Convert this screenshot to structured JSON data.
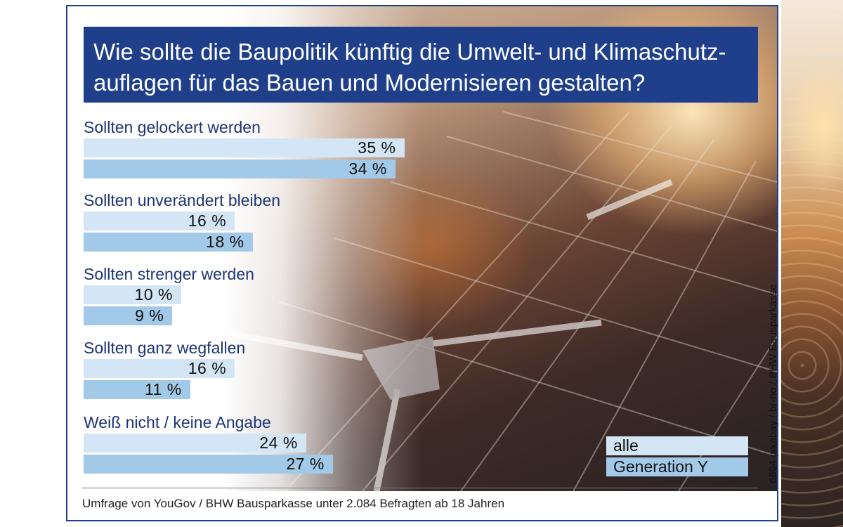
{
  "title_lines": [
    "Wie sollte die Baupolitik künftig die Umwelt- und Klimaschutz-",
    "auflagen für das Bauen und Modernisieren gestalten?"
  ],
  "chart_data": {
    "type": "bar",
    "orientation": "horizontal",
    "title": "Wie sollte die Baupolitik künftig die Umwelt- und Klimaschutzauflagen für das Bauen und Modernisieren gestalten?",
    "categories": [
      "Sollten gelockert werden",
      "Sollten unverändert bleiben",
      "Sollten strenger werden",
      "Sollten ganz wegfallen",
      "Weiß nicht / keine Angabe"
    ],
    "series": [
      {
        "name": "alle",
        "values": [
          35,
          16,
          10,
          16,
          24
        ],
        "labels": [
          "35 %",
          "16 %",
          "10 %",
          "16 %",
          "24 %"
        ],
        "color": "#d4e6f5"
      },
      {
        "name": "Generation Y",
        "values": [
          34,
          18,
          9,
          11,
          27
        ],
        "labels": [
          "34 %",
          "18 %",
          "9 %",
          "11 %",
          "27 %"
        ],
        "color": "#a3c9e8"
      }
    ],
    "unit": "%",
    "legend_position": "bottom-right",
    "grid": false
  },
  "legend": {
    "items": [
      "alle",
      "Generation Y"
    ]
  },
  "footer": {
    "source": "Umfrage von YouGov / BHW Bausparkasse unter 2.084 Befragten ab 18 Jahren"
  },
  "credit": "6694 pixabay / br-no / BHW Bausparkasse",
  "colors": {
    "title_bg": "#1f3f8b",
    "frame": "#1d3f8f",
    "label_text": "#1d3577"
  }
}
